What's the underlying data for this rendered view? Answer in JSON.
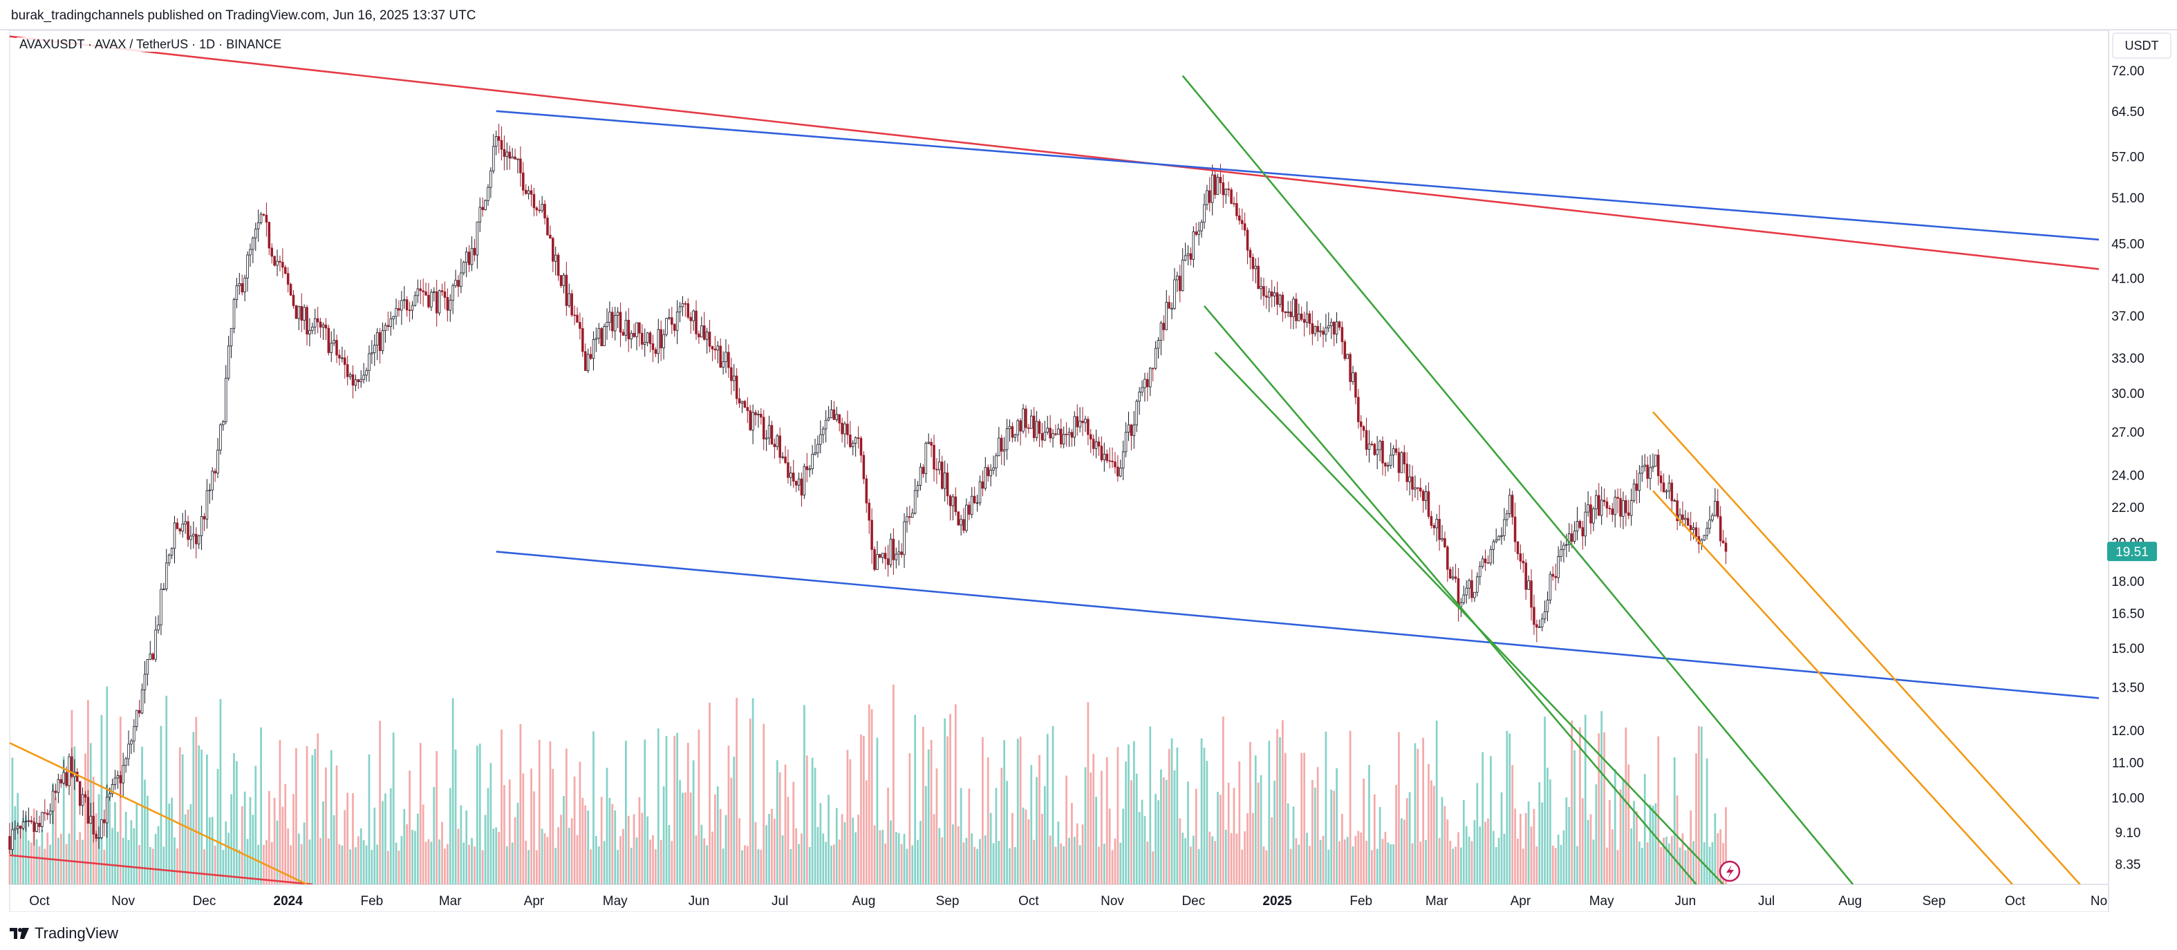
{
  "header": {
    "published_text": "burak_tradingchannels published on TradingView.com, Jun 16, 2025 13:37 UTC"
  },
  "symbol": {
    "line": "AVAXUSDT · AVAX / TetherUS · 1D · BINANCE"
  },
  "price_axis": {
    "currency": "USDT",
    "last_price": "19.51",
    "last_price_color": "#26a69a"
  },
  "footer": {
    "logo_text": "TradingView"
  },
  "chart_data": {
    "type": "candlestick",
    "title": "AVAXUSDT · AVAX / TetherUS · 1D · BINANCE",
    "scale": "log",
    "ylim": [
      7.9,
      80
    ],
    "y_ticks": [
      "72.00",
      "64.50",
      "57.00",
      "51.00",
      "45.00",
      "41.00",
      "37.00",
      "33.00",
      "30.00",
      "27.00",
      "24.00",
      "22.00",
      "20.00",
      "18.00",
      "16.50",
      "15.00",
      "13.50",
      "12.00",
      "11.00",
      "10.00",
      "9.10",
      "8.35"
    ],
    "x_ticks": [
      "Oct",
      "Nov",
      "Dec",
      "2024",
      "Feb",
      "Mar",
      "Apr",
      "May",
      "Jun",
      "Jul",
      "Aug",
      "Sep",
      "Oct",
      "Nov",
      "Dec",
      "2025",
      "Feb",
      "Mar",
      "Apr",
      "May",
      "Jun",
      "Jul",
      "Aug",
      "Sep",
      "Oct",
      "No"
    ],
    "x_range": [
      "2023-09-20",
      "2025-11-01"
    ],
    "last_price": 19.51,
    "up_color": "#131722",
    "down_color": "#9c1b28",
    "volume_up_color": "#86d2c8",
    "volume_down_color": "#f4a9a9",
    "price_path": [
      [
        "2023-09-20",
        9.0
      ],
      [
        "2023-10-01",
        9.2
      ],
      [
        "2023-10-12",
        10.8
      ],
      [
        "2023-10-22",
        9.1
      ],
      [
        "2023-11-02",
        11.0
      ],
      [
        "2023-11-12",
        15.0
      ],
      [
        "2023-11-20",
        21.0
      ],
      [
        "2023-11-28",
        20.0
      ],
      [
        "2023-12-06",
        25.0
      ],
      [
        "2023-12-12",
        38.0
      ],
      [
        "2023-12-22",
        48.0
      ],
      [
        "2023-12-28",
        43.0
      ],
      [
        "2024-01-05",
        37.0
      ],
      [
        "2024-01-15",
        35.0
      ],
      [
        "2024-01-25",
        31.0
      ],
      [
        "2024-02-05",
        35.0
      ],
      [
        "2024-02-18",
        40.0
      ],
      [
        "2024-02-28",
        38.0
      ],
      [
        "2024-03-10",
        45.0
      ],
      [
        "2024-03-18",
        60.0
      ],
      [
        "2024-03-26",
        55.0
      ],
      [
        "2024-04-03",
        50.0
      ],
      [
        "2024-04-12",
        40.0
      ],
      [
        "2024-04-20",
        33.0
      ],
      [
        "2024-05-01",
        37.0
      ],
      [
        "2024-05-15",
        34.0
      ],
      [
        "2024-05-27",
        38.0
      ],
      [
        "2024-06-10",
        33.0
      ],
      [
        "2024-06-20",
        28.0
      ],
      [
        "2024-06-30",
        26.0
      ],
      [
        "2024-07-08",
        23.0
      ],
      [
        "2024-07-20",
        28.0
      ],
      [
        "2024-07-30",
        26.0
      ],
      [
        "2024-08-05",
        19.0
      ],
      [
        "2024-08-15",
        20.0
      ],
      [
        "2024-08-25",
        26.0
      ],
      [
        "2024-09-06",
        21.0
      ],
      [
        "2024-09-20",
        26.0
      ],
      [
        "2024-09-30",
        28.0
      ],
      [
        "2024-10-10",
        26.0
      ],
      [
        "2024-10-20",
        28.0
      ],
      [
        "2024-11-02",
        24.0
      ],
      [
        "2024-11-12",
        30.0
      ],
      [
        "2024-11-22",
        38.0
      ],
      [
        "2024-12-01",
        45.0
      ],
      [
        "2024-12-08",
        53.0
      ],
      [
        "2024-12-15",
        52.0
      ],
      [
        "2024-12-25",
        40.0
      ],
      [
        "2025-01-05",
        38.0
      ],
      [
        "2025-01-15",
        36.0
      ],
      [
        "2025-01-25",
        35.0
      ],
      [
        "2025-02-03",
        26.0
      ],
      [
        "2025-02-15",
        25.0
      ],
      [
        "2025-02-26",
        22.0
      ],
      [
        "2025-03-10",
        17.0
      ],
      [
        "2025-03-20",
        19.0
      ],
      [
        "2025-03-28",
        22.0
      ],
      [
        "2025-04-07",
        16.0
      ],
      [
        "2025-04-15",
        19.0
      ],
      [
        "2025-04-28",
        22.0
      ],
      [
        "2025-05-10",
        22.0
      ],
      [
        "2025-05-20",
        25.0
      ],
      [
        "2025-05-28",
        22.0
      ],
      [
        "2025-06-06",
        20.0
      ],
      [
        "2025-06-12",
        22.0
      ],
      [
        "2025-06-16",
        19.51
      ]
    ],
    "trendlines": [
      {
        "color": "#e53945",
        "points": [
          [
            "2023-09-20",
            79.0
          ],
          [
            "2025-11-01",
            42.0
          ]
        ]
      },
      {
        "color": "#e53945",
        "points": [
          [
            "2023-09-20",
            8.55
          ],
          [
            "2024-01-10",
            7.9
          ]
        ]
      },
      {
        "color": "#2f5fdb",
        "points": [
          [
            "2024-03-18",
            64.5
          ],
          [
            "2025-11-01",
            45.5
          ]
        ]
      },
      {
        "color": "#2f5fdb",
        "points": [
          [
            "2024-03-18",
            19.5
          ],
          [
            "2025-11-01",
            13.1
          ]
        ]
      },
      {
        "color": "#f29a13",
        "points": [
          [
            "2023-09-20",
            11.6
          ],
          [
            "2024-01-08",
            7.9
          ]
        ]
      },
      {
        "color": "#3ca33c",
        "points": [
          [
            "2024-11-27",
            71.0
          ],
          [
            "2025-08-02",
            7.9
          ]
        ]
      },
      {
        "color": "#3ca33c",
        "points": [
          [
            "2024-12-05",
            38.0
          ],
          [
            "2025-06-05",
            7.9
          ]
        ]
      },
      {
        "color": "#3ca33c",
        "points": [
          [
            "2024-12-09",
            33.5
          ],
          [
            "2025-06-15",
            7.9
          ]
        ]
      },
      {
        "color": "#f29a13",
        "points": [
          [
            "2025-05-20",
            28.5
          ],
          [
            "2025-10-25",
            7.9
          ]
        ]
      },
      {
        "color": "#f29a13",
        "points": [
          [
            "2025-05-20",
            23.0
          ],
          [
            "2025-09-30",
            7.9
          ]
        ]
      }
    ]
  }
}
